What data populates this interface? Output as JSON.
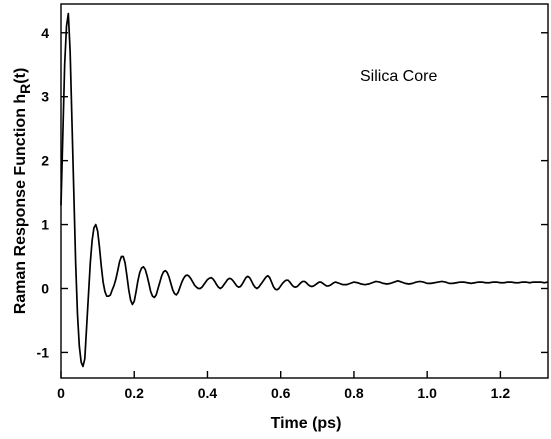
{
  "chart_data": {
    "type": "line",
    "xlabel": "Time (ps)",
    "ylabel": {
      "main": "Raman Response Function h",
      "subscript": "R",
      "suffix": "(t)"
    },
    "annotation": "Silica Core",
    "xlim": [
      0,
      1.33
    ],
    "ylim": [
      -1.4,
      4.45
    ],
    "x_ticks": [
      0,
      0.2,
      0.4,
      0.6,
      0.8,
      1.0,
      1.2
    ],
    "x_tick_labels": [
      "0",
      "0.2",
      "0.4",
      "0.6",
      "0.8",
      "1.0",
      "1.2"
    ],
    "y_ticks": [
      -1,
      0,
      1,
      2,
      3,
      4
    ],
    "y_tick_labels": [
      "-1",
      "0",
      "1",
      "2",
      "3",
      "4"
    ],
    "grid": false,
    "legend": "none",
    "series": [
      {
        "color": "#000000",
        "points": [
          [
            0,
            1.3
          ],
          [
            0.005,
            2.4
          ],
          [
            0.01,
            3.5
          ],
          [
            0.015,
            4.1
          ],
          [
            0.02,
            4.3
          ],
          [
            0.025,
            3.7
          ],
          [
            0.03,
            2.6
          ],
          [
            0.035,
            1.5
          ],
          [
            0.04,
            0.4
          ],
          [
            0.045,
            -0.4
          ],
          [
            0.05,
            -0.9
          ],
          [
            0.055,
            -1.15
          ],
          [
            0.06,
            -1.22
          ],
          [
            0.065,
            -1.1
          ],
          [
            0.07,
            -0.6
          ],
          [
            0.075,
            -0.1
          ],
          [
            0.08,
            0.4
          ],
          [
            0.085,
            0.75
          ],
          [
            0.09,
            0.95
          ],
          [
            0.095,
            1.0
          ],
          [
            0.1,
            0.9
          ],
          [
            0.105,
            0.65
          ],
          [
            0.11,
            0.35
          ],
          [
            0.115,
            0.1
          ],
          [
            0.12,
            -0.05
          ],
          [
            0.125,
            -0.12
          ],
          [
            0.13,
            -0.12
          ],
          [
            0.135,
            -0.1
          ],
          [
            0.14,
            -0.02
          ],
          [
            0.145,
            0.05
          ],
          [
            0.15,
            0.15
          ],
          [
            0.155,
            0.28
          ],
          [
            0.16,
            0.42
          ],
          [
            0.165,
            0.5
          ],
          [
            0.17,
            0.5
          ],
          [
            0.175,
            0.4
          ],
          [
            0.18,
            0.2
          ],
          [
            0.185,
            -0.02
          ],
          [
            0.19,
            -0.18
          ],
          [
            0.195,
            -0.25
          ],
          [
            0.2,
            -0.2
          ],
          [
            0.205,
            -0.05
          ],
          [
            0.21,
            0.12
          ],
          [
            0.215,
            0.25
          ],
          [
            0.22,
            0.32
          ],
          [
            0.225,
            0.34
          ],
          [
            0.23,
            0.3
          ],
          [
            0.235,
            0.2
          ],
          [
            0.24,
            0.08
          ],
          [
            0.245,
            -0.05
          ],
          [
            0.25,
            -0.12
          ],
          [
            0.255,
            -0.14
          ],
          [
            0.26,
            -0.1
          ],
          [
            0.265,
            0.0
          ],
          [
            0.27,
            0.1
          ],
          [
            0.275,
            0.2
          ],
          [
            0.28,
            0.26
          ],
          [
            0.285,
            0.28
          ],
          [
            0.29,
            0.25
          ],
          [
            0.295,
            0.18
          ],
          [
            0.3,
            0.08
          ],
          [
            0.305,
            -0.02
          ],
          [
            0.31,
            -0.08
          ],
          [
            0.315,
            -0.1
          ],
          [
            0.32,
            -0.06
          ],
          [
            0.325,
            0.02
          ],
          [
            0.33,
            0.1
          ],
          [
            0.335,
            0.16
          ],
          [
            0.34,
            0.2
          ],
          [
            0.345,
            0.21
          ],
          [
            0.35,
            0.19
          ],
          [
            0.355,
            0.15
          ],
          [
            0.36,
            0.1
          ],
          [
            0.365,
            0.05
          ],
          [
            0.37,
            0.02
          ],
          [
            0.375,
            0.0
          ],
          [
            0.38,
            0.0
          ],
          [
            0.385,
            0.02
          ],
          [
            0.39,
            0.06
          ],
          [
            0.395,
            0.1
          ],
          [
            0.4,
            0.14
          ],
          [
            0.405,
            0.16
          ],
          [
            0.41,
            0.17
          ],
          [
            0.415,
            0.15
          ],
          [
            0.42,
            0.11
          ],
          [
            0.425,
            0.06
          ],
          [
            0.43,
            0.02
          ],
          [
            0.435,
            0.0
          ],
          [
            0.44,
            0.02
          ],
          [
            0.445,
            0.06
          ],
          [
            0.45,
            0.1
          ],
          [
            0.455,
            0.14
          ],
          [
            0.46,
            0.16
          ],
          [
            0.465,
            0.15
          ],
          [
            0.47,
            0.12
          ],
          [
            0.475,
            0.08
          ],
          [
            0.48,
            0.04
          ],
          [
            0.485,
            0.02
          ],
          [
            0.49,
            0.03
          ],
          [
            0.495,
            0.07
          ],
          [
            0.5,
            0.12
          ],
          [
            0.505,
            0.17
          ],
          [
            0.51,
            0.19
          ],
          [
            0.515,
            0.17
          ],
          [
            0.52,
            0.12
          ],
          [
            0.525,
            0.06
          ],
          [
            0.53,
            0.02
          ],
          [
            0.535,
            0.0
          ],
          [
            0.54,
            0.02
          ],
          [
            0.545,
            0.06
          ],
          [
            0.55,
            0.1
          ],
          [
            0.555,
            0.14
          ],
          [
            0.56,
            0.18
          ],
          [
            0.565,
            0.2
          ],
          [
            0.57,
            0.17
          ],
          [
            0.575,
            0.1
          ],
          [
            0.58,
            0.03
          ],
          [
            0.585,
            -0.01
          ],
          [
            0.59,
            -0.02
          ],
          [
            0.595,
            0.0
          ],
          [
            0.6,
            0.04
          ],
          [
            0.605,
            0.08
          ],
          [
            0.61,
            0.11
          ],
          [
            0.615,
            0.13
          ],
          [
            0.62,
            0.13
          ],
          [
            0.625,
            0.1
          ],
          [
            0.63,
            0.06
          ],
          [
            0.635,
            0.03
          ],
          [
            0.64,
            0.02
          ],
          [
            0.645,
            0.03
          ],
          [
            0.65,
            0.06
          ],
          [
            0.655,
            0.09
          ],
          [
            0.66,
            0.11
          ],
          [
            0.665,
            0.11
          ],
          [
            0.67,
            0.09
          ],
          [
            0.675,
            0.06
          ],
          [
            0.68,
            0.04
          ],
          [
            0.685,
            0.03
          ],
          [
            0.69,
            0.04
          ],
          [
            0.695,
            0.06
          ],
          [
            0.7,
            0.08
          ],
          [
            0.705,
            0.1
          ],
          [
            0.71,
            0.1
          ],
          [
            0.715,
            0.08
          ],
          [
            0.72,
            0.06
          ],
          [
            0.725,
            0.04
          ],
          [
            0.73,
            0.04
          ],
          [
            0.735,
            0.05
          ],
          [
            0.74,
            0.07
          ],
          [
            0.745,
            0.09
          ],
          [
            0.75,
            0.1
          ],
          [
            0.76,
            0.08
          ],
          [
            0.77,
            0.06
          ],
          [
            0.78,
            0.06
          ],
          [
            0.79,
            0.08
          ],
          [
            0.8,
            0.1
          ],
          [
            0.81,
            0.09
          ],
          [
            0.82,
            0.07
          ],
          [
            0.83,
            0.06
          ],
          [
            0.84,
            0.07
          ],
          [
            0.85,
            0.09
          ],
          [
            0.86,
            0.11
          ],
          [
            0.87,
            0.1
          ],
          [
            0.88,
            0.08
          ],
          [
            0.89,
            0.07
          ],
          [
            0.9,
            0.08
          ],
          [
            0.91,
            0.1
          ],
          [
            0.92,
            0.12
          ],
          [
            0.93,
            0.1
          ],
          [
            0.94,
            0.08
          ],
          [
            0.95,
            0.07
          ],
          [
            0.96,
            0.08
          ],
          [
            0.97,
            0.1
          ],
          [
            0.98,
            0.11
          ],
          [
            0.99,
            0.1
          ],
          [
            1.0,
            0.08
          ],
          [
            1.01,
            0.08
          ],
          [
            1.02,
            0.09
          ],
          [
            1.03,
            0.1
          ],
          [
            1.04,
            0.11
          ],
          [
            1.05,
            0.1
          ],
          [
            1.06,
            0.08
          ],
          [
            1.07,
            0.08
          ],
          [
            1.08,
            0.09
          ],
          [
            1.09,
            0.1
          ],
          [
            1.1,
            0.1
          ],
          [
            1.11,
            0.09
          ],
          [
            1.12,
            0.08
          ],
          [
            1.13,
            0.09
          ],
          [
            1.14,
            0.1
          ],
          [
            1.15,
            0.1
          ],
          [
            1.16,
            0.09
          ],
          [
            1.17,
            0.09
          ],
          [
            1.18,
            0.1
          ],
          [
            1.19,
            0.1
          ],
          [
            1.2,
            0.09
          ],
          [
            1.21,
            0.09
          ],
          [
            1.22,
            0.1
          ],
          [
            1.23,
            0.1
          ],
          [
            1.24,
            0.09
          ],
          [
            1.25,
            0.09
          ],
          [
            1.26,
            0.1
          ],
          [
            1.27,
            0.1
          ],
          [
            1.28,
            0.09
          ],
          [
            1.29,
            0.1
          ],
          [
            1.3,
            0.1
          ],
          [
            1.31,
            0.1
          ],
          [
            1.32,
            0.09
          ],
          [
            1.33,
            0.1
          ]
        ]
      }
    ]
  }
}
